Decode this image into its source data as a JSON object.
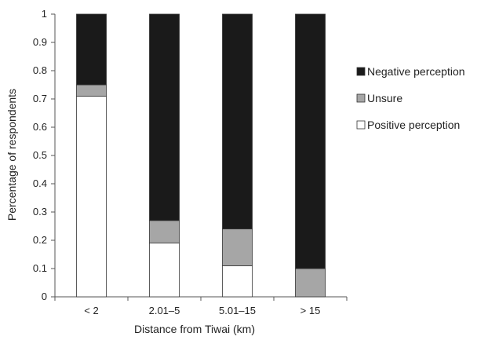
{
  "chart_data": {
    "type": "bar",
    "stacked": true,
    "title": "",
    "xlabel": "Distance from Tiwai (km)",
    "ylabel": "Percentage of respondents",
    "ylim": [
      0,
      1
    ],
    "yticks": [
      "0",
      "0.1",
      "0.2",
      "0.3",
      "0.4",
      "0.5",
      "0.6",
      "0.7",
      "0.8",
      "0.9",
      "1"
    ],
    "grid": false,
    "legend_position": "right",
    "categories": [
      "< 2",
      "2.01–5",
      "5.01–15",
      "> 15"
    ],
    "series": [
      {
        "name": "Positive perception",
        "color": "#ffffff",
        "values": [
          0.71,
          0.19,
          0.11,
          0.0
        ]
      },
      {
        "name": "Unsure",
        "color": "#a6a6a6",
        "values": [
          0.04,
          0.08,
          0.13,
          0.1
        ]
      },
      {
        "name": "Negative perception",
        "color": "#1a1a1a",
        "values": [
          0.25,
          0.73,
          0.76,
          0.9
        ]
      }
    ],
    "legend_order": [
      "Negative perception",
      "Unsure",
      "Positive perception"
    ]
  }
}
